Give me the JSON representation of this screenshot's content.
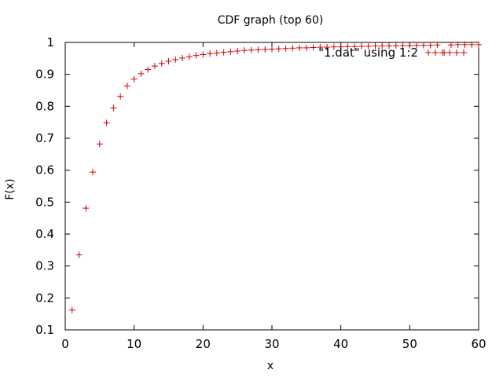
{
  "chart_data": {
    "type": "scatter",
    "title": "CDF graph (top 60)",
    "xlabel": "x",
    "ylabel": "F(x)",
    "xlim": [
      0,
      60
    ],
    "ylim": [
      0.1,
      1
    ],
    "xticks": [
      "0",
      "10",
      "20",
      "30",
      "40",
      "50",
      "60"
    ],
    "yticks": [
      "0.1",
      "0.2",
      "0.3",
      "0.4",
      "0.5",
      "0.6",
      "0.7",
      "0.8",
      "0.9",
      "1"
    ],
    "grid": false,
    "legend": {
      "placement": "top-right",
      "label": "\"1.dat\" using 1:2"
    },
    "marker": "+",
    "color": "#cc0000",
    "series": [
      {
        "x": [
          1,
          2,
          3,
          4,
          5,
          6,
          7,
          8,
          9,
          10,
          11,
          12,
          13,
          14,
          15,
          16,
          17,
          18,
          19,
          20,
          21,
          22,
          23,
          24,
          25,
          26,
          27,
          28,
          29,
          30,
          31,
          32,
          33,
          34,
          35,
          36,
          37,
          38,
          39,
          40,
          41,
          42,
          43,
          44,
          45,
          46,
          47,
          48,
          49,
          50,
          51,
          52,
          53,
          54,
          55,
          56,
          57,
          58,
          59,
          60
        ],
        "y": [
          0.162,
          0.335,
          0.481,
          0.594,
          0.682,
          0.748,
          0.795,
          0.831,
          0.864,
          0.885,
          0.902,
          0.915,
          0.926,
          0.934,
          0.941,
          0.946,
          0.951,
          0.955,
          0.959,
          0.962,
          0.965,
          0.967,
          0.969,
          0.971,
          0.973,
          0.975,
          0.976,
          0.977,
          0.978,
          0.979,
          0.98,
          0.981,
          0.982,
          0.983,
          0.983,
          0.984,
          0.985,
          0.985,
          0.986,
          0.986,
          0.987,
          0.987,
          0.988,
          0.988,
          0.989,
          0.989,
          0.989,
          0.99,
          0.99,
          0.99,
          0.991,
          0.991,
          0.991,
          0.992,
          0.968,
          0.992,
          0.993,
          0.993,
          0.993,
          0.993
        ]
      }
    ]
  }
}
